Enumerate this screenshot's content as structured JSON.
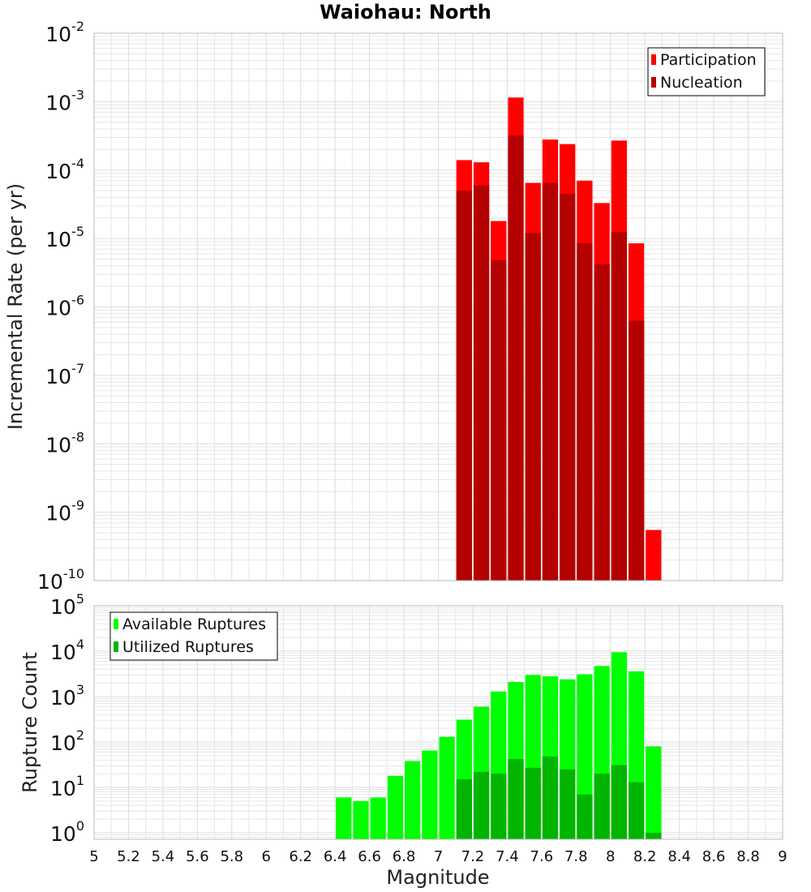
{
  "figure": {
    "title": "Waiohau: North",
    "xlabel": "Magnitude"
  },
  "colors": {
    "participation": "#ff0000",
    "nucleation": "#b40000",
    "available": "#00ff00",
    "utilized": "#00b400",
    "grid": "#e6e6e6",
    "frame": "#bbbbbb"
  },
  "chart_data": [
    {
      "type": "bar",
      "panel": "top",
      "ylabel": "Incremental Rate (per yr)",
      "yscale": "log",
      "ylim": [
        1e-10,
        0.01
      ],
      "xlim": [
        5,
        9
      ],
      "legend_position": "top-right",
      "x": [
        7.15,
        7.25,
        7.35,
        7.45,
        7.55,
        7.65,
        7.75,
        7.85,
        7.95,
        8.05,
        8.15,
        8.25
      ],
      "series": [
        {
          "name": "Participation",
          "values": [
            0.00014,
            0.00013,
            1.8e-05,
            0.00115,
            6.5e-05,
            0.00028,
            0.00024,
            7e-05,
            3.3e-05,
            0.00027,
            8.5e-06,
            5.5e-10
          ]
        },
        {
          "name": "Nucleation",
          "values": [
            5e-05,
            6e-05,
            4.8e-06,
            0.00032,
            1.2e-05,
            6.5e-05,
            4.5e-05,
            8.5e-06,
            4.2e-06,
            1.25e-05,
            6.3e-07,
            1e-10
          ]
        }
      ],
      "y_ticks": [
        {
          "base": "10",
          "exp": "-2"
        },
        {
          "base": "10",
          "exp": "-3"
        },
        {
          "base": "10",
          "exp": "-4"
        },
        {
          "base": "10",
          "exp": "-5"
        },
        {
          "base": "10",
          "exp": "-6"
        },
        {
          "base": "10",
          "exp": "-7"
        },
        {
          "base": "10",
          "exp": "-8"
        },
        {
          "base": "10",
          "exp": "-9"
        },
        {
          "base": "10",
          "exp": "-10"
        }
      ]
    },
    {
      "type": "bar",
      "panel": "bottom",
      "ylabel": "Rupture Count",
      "yscale": "log",
      "ylim": [
        0.72,
        100000
      ],
      "xlim": [
        5,
        9
      ],
      "legend_position": "top-left",
      "x": [
        6.45,
        6.55,
        6.65,
        6.75,
        6.85,
        6.95,
        7.05,
        7.15,
        7.25,
        7.35,
        7.45,
        7.55,
        7.65,
        7.75,
        7.85,
        7.95,
        8.05,
        8.15,
        8.25
      ],
      "series": [
        {
          "name": "Available Ruptures",
          "values": [
            6,
            5,
            6,
            18,
            38,
            65,
            130,
            310,
            600,
            1300,
            2100,
            3000,
            2800,
            2400,
            3100,
            4700,
            9500,
            3600,
            80
          ]
        },
        {
          "name": "Utilized Ruptures",
          "values": [
            0,
            0,
            0,
            0,
            0,
            0,
            0,
            15,
            22,
            20,
            42,
            27,
            48,
            25,
            7,
            20,
            31,
            13,
            1
          ]
        }
      ],
      "y_ticks": [
        {
          "base": "10",
          "exp": "5"
        },
        {
          "base": "10",
          "exp": "4"
        },
        {
          "base": "10",
          "exp": "3"
        },
        {
          "base": "10",
          "exp": "2"
        },
        {
          "base": "10",
          "exp": "1"
        },
        {
          "base": "10",
          "exp": "0"
        }
      ]
    }
  ],
  "x_ticks": [
    "5",
    "5.2",
    "5.4",
    "5.6",
    "5.8",
    "6",
    "6.2",
    "6.4",
    "6.6",
    "6.8",
    "7",
    "7.2",
    "7.4",
    "7.6",
    "7.8",
    "8",
    "8.2",
    "8.4",
    "8.6",
    "8.8",
    "9"
  ]
}
